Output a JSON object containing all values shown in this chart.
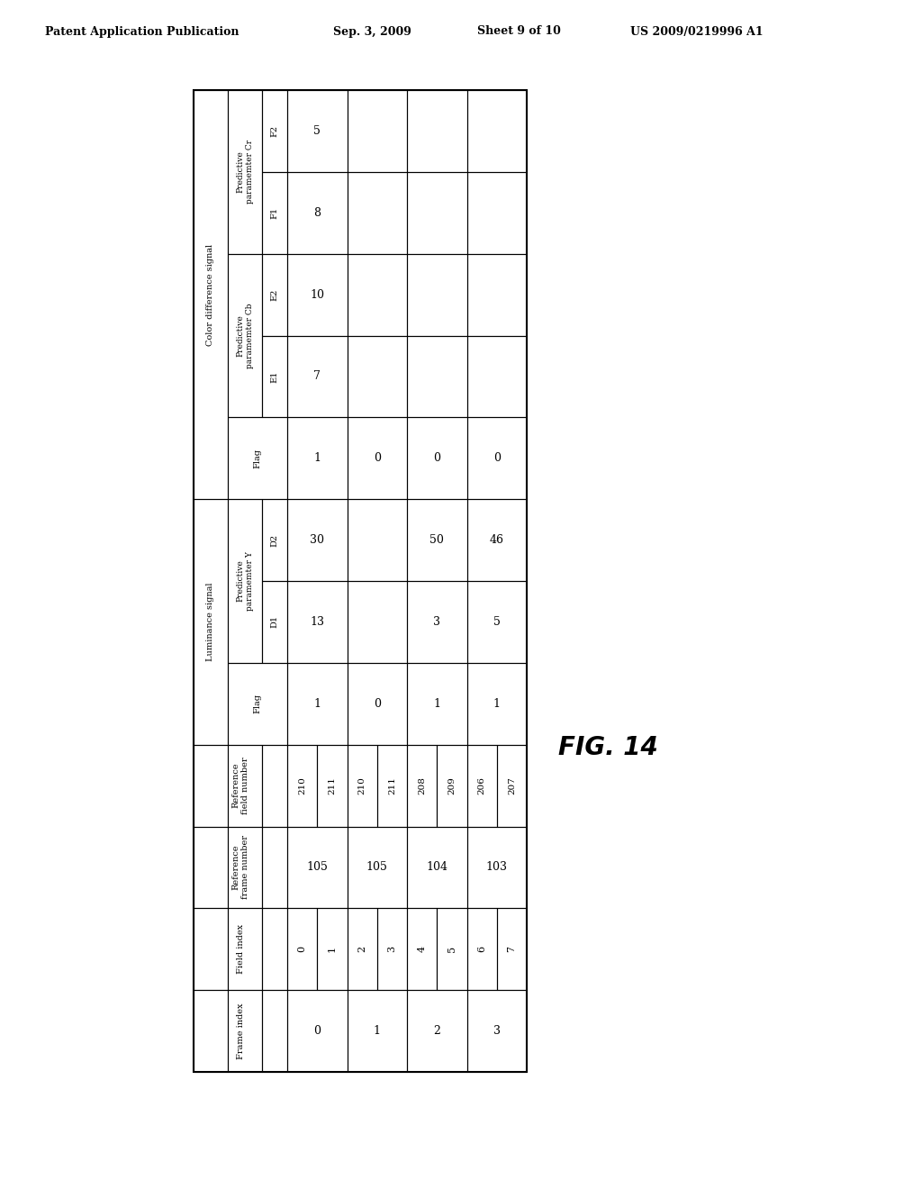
{
  "title_line1": "Patent Application Publication",
  "title_line2": "Sep. 3, 2009",
  "title_line3": "Sheet 9 of 10",
  "title_line4": "US 2009/0219996 A1",
  "fig_label": "FIG. 14",
  "background_color": "#ffffff",
  "table": {
    "frame_index": [
      "0",
      "1",
      "2",
      "3"
    ],
    "field_index": [
      [
        "0",
        "1"
      ],
      [
        "2",
        "3"
      ],
      [
        "4",
        "5"
      ],
      [
        "6",
        "7"
      ]
    ],
    "ref_frame_number": [
      "105",
      "105",
      "104",
      "103"
    ],
    "ref_field_number": [
      [
        "210",
        "211"
      ],
      [
        "210",
        "211"
      ],
      [
        "208",
        "209"
      ],
      [
        "206",
        "207"
      ]
    ],
    "lum_flag": [
      "1",
      "0",
      "1",
      "1"
    ],
    "lum_D1": [
      "13",
      "",
      "3",
      "5"
    ],
    "lum_D2": [
      "30",
      "",
      "50",
      "46"
    ],
    "col_flag": [
      "1",
      "0",
      "0",
      "0"
    ],
    "col_E1": [
      "7",
      "",
      "",
      ""
    ],
    "col_E2": [
      "10",
      "",
      "",
      ""
    ],
    "col_F1": [
      "8",
      "",
      "",
      ""
    ],
    "col_F2": [
      "5",
      "",
      "",
      ""
    ]
  }
}
